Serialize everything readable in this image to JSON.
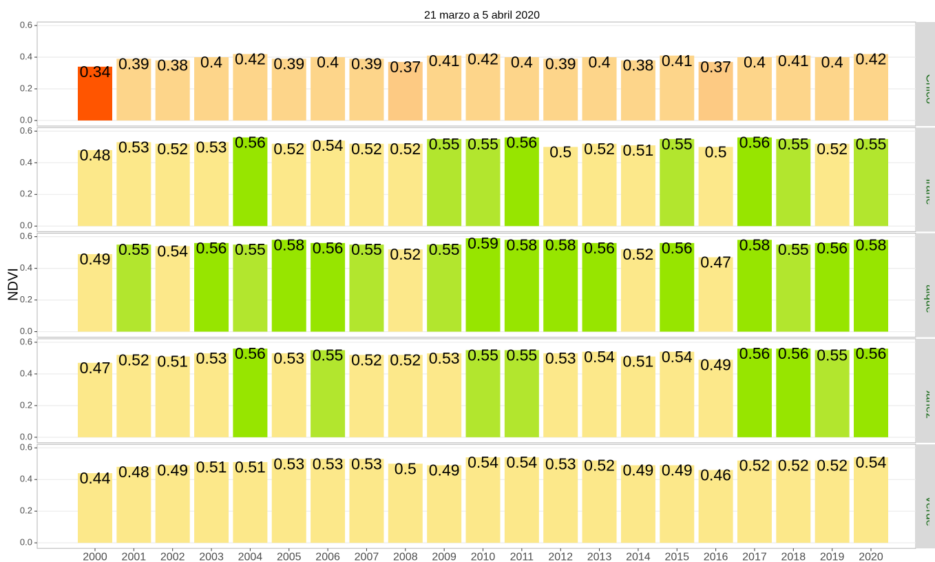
{
  "title": "21 marzo a 5 abril 2020",
  "y_label": "NDVI",
  "categories": [
    "2000",
    "2001",
    "2002",
    "2003",
    "2004",
    "2005",
    "2006",
    "2007",
    "2008",
    "2009",
    "2010",
    "2011",
    "2012",
    "2013",
    "2014",
    "2015",
    "2016",
    "2017",
    "2018",
    "2019",
    "2020"
  ],
  "chart_data": [
    {
      "type": "bar",
      "panel": "Chile Chico",
      "ylim": [
        -0.035,
        0.622
      ],
      "yticks": [
        {
          "value": 0,
          "label": "0.0"
        },
        0.2,
        0.4,
        0.6
      ],
      "grid": true,
      "values": [
        0.34,
        0.39,
        0.38,
        0.4,
        0.42,
        0.39,
        0.4,
        0.39,
        0.37,
        0.41,
        0.42,
        0.4,
        0.39,
        0.4,
        0.38,
        0.41,
        0.37,
        0.4,
        0.41,
        0.4,
        0.42
      ],
      "colors": [
        "#ff5500",
        "#fdd58a",
        "#fdd58a",
        "#fdd58a",
        "#fdd58a",
        "#fdd58a",
        "#fdd58a",
        "#fdd58a",
        "#fdca83",
        "#fdd58a",
        "#fdd58a",
        "#fdd58a",
        "#fdd58a",
        "#fdd58a",
        "#fdd58a",
        "#fdd58a",
        "#fdca83",
        "#fdd58a",
        "#fdd58a",
        "#fdd58a",
        "#fdd58a"
      ]
    },
    {
      "type": "bar",
      "panel": "Cochrane",
      "ylim": [
        -0.035,
        0.622
      ],
      "yticks": [
        {
          "value": 0,
          "label": "0.0"
        },
        0.2,
        0.4,
        0.6
      ],
      "grid": true,
      "values": [
        0.48,
        0.53,
        0.52,
        0.53,
        0.56,
        0.52,
        0.54,
        0.52,
        0.52,
        0.55,
        0.55,
        0.56,
        0.5,
        0.52,
        0.51,
        0.55,
        0.5,
        0.56,
        0.55,
        0.52,
        0.55
      ],
      "colors": [
        "#fce88a",
        "#fce88a",
        "#fce88a",
        "#fce88a",
        "#97e500",
        "#fce88a",
        "#fce88a",
        "#fce88a",
        "#fce88a",
        "#b2e62e",
        "#b2e62e",
        "#97e500",
        "#fce88a",
        "#fce88a",
        "#fce88a",
        "#b2e62e",
        "#fce88a",
        "#97e500",
        "#b2e62e",
        "#fce88a",
        "#b2e62e"
      ]
    },
    {
      "type": "bar",
      "panel": "Coyhaique",
      "ylim": [
        -0.035,
        0.622
      ],
      "yticks": [
        {
          "value": 0,
          "label": "0.0"
        },
        0.2,
        0.4,
        0.6
      ],
      "grid": true,
      "values": [
        0.49,
        0.55,
        0.54,
        0.56,
        0.55,
        0.58,
        0.56,
        0.55,
        0.52,
        0.55,
        0.59,
        0.58,
        0.58,
        0.56,
        0.52,
        0.56,
        0.47,
        0.58,
        0.55,
        0.56,
        0.58
      ],
      "colors": [
        "#fce88a",
        "#b2e62e",
        "#fce88a",
        "#97e500",
        "#b2e62e",
        "#97e500",
        "#97e500",
        "#b2e62e",
        "#fce88a",
        "#b2e62e",
        "#97e500",
        "#97e500",
        "#97e500",
        "#97e500",
        "#fce88a",
        "#97e500",
        "#fce88a",
        "#97e500",
        "#b2e62e",
        "#97e500",
        "#97e500"
      ]
    },
    {
      "type": "bar",
      "panel": "Rio Ibanez",
      "ylim": [
        -0.035,
        0.622
      ],
      "yticks": [
        {
          "value": 0,
          "label": "0.0"
        },
        0.2,
        0.4,
        0.6
      ],
      "grid": true,
      "values": [
        0.47,
        0.52,
        0.51,
        0.53,
        0.56,
        0.53,
        0.55,
        0.52,
        0.52,
        0.53,
        0.55,
        0.55,
        0.53,
        0.54,
        0.51,
        0.54,
        0.49,
        0.56,
        0.56,
        0.55,
        0.56
      ],
      "colors": [
        "#fce88a",
        "#fce88a",
        "#fce88a",
        "#fce88a",
        "#97e500",
        "#fce88a",
        "#b2e62e",
        "#fce88a",
        "#fce88a",
        "#fce88a",
        "#b2e62e",
        "#b2e62e",
        "#fce88a",
        "#fce88a",
        "#fce88a",
        "#fce88a",
        "#fce88a",
        "#97e500",
        "#97e500",
        "#b2e62e",
        "#97e500"
      ]
    },
    {
      "type": "bar",
      "panel": "Lago Verde",
      "ylim": [
        -0.035,
        0.622
      ],
      "yticks": [
        {
          "value": 0,
          "label": "0.0"
        },
        0.2,
        0.4,
        0.6
      ],
      "grid": true,
      "values": [
        0.44,
        0.48,
        0.49,
        0.51,
        0.51,
        0.53,
        0.53,
        0.53,
        0.5,
        0.49,
        0.54,
        0.54,
        0.53,
        0.52,
        0.49,
        0.49,
        0.46,
        0.52,
        0.52,
        0.52,
        0.54
      ],
      "colors": [
        "#fce88a",
        "#fce88a",
        "#fce88a",
        "#fce88a",
        "#fce88a",
        "#fce88a",
        "#fce88a",
        "#fce88a",
        "#fce88a",
        "#fce88a",
        "#fce88a",
        "#fce88a",
        "#fce88a",
        "#fce88a",
        "#fce88a",
        "#fce88a",
        "#fce88a",
        "#fce88a",
        "#fce88a",
        "#fce88a",
        "#fce88a"
      ]
    }
  ]
}
